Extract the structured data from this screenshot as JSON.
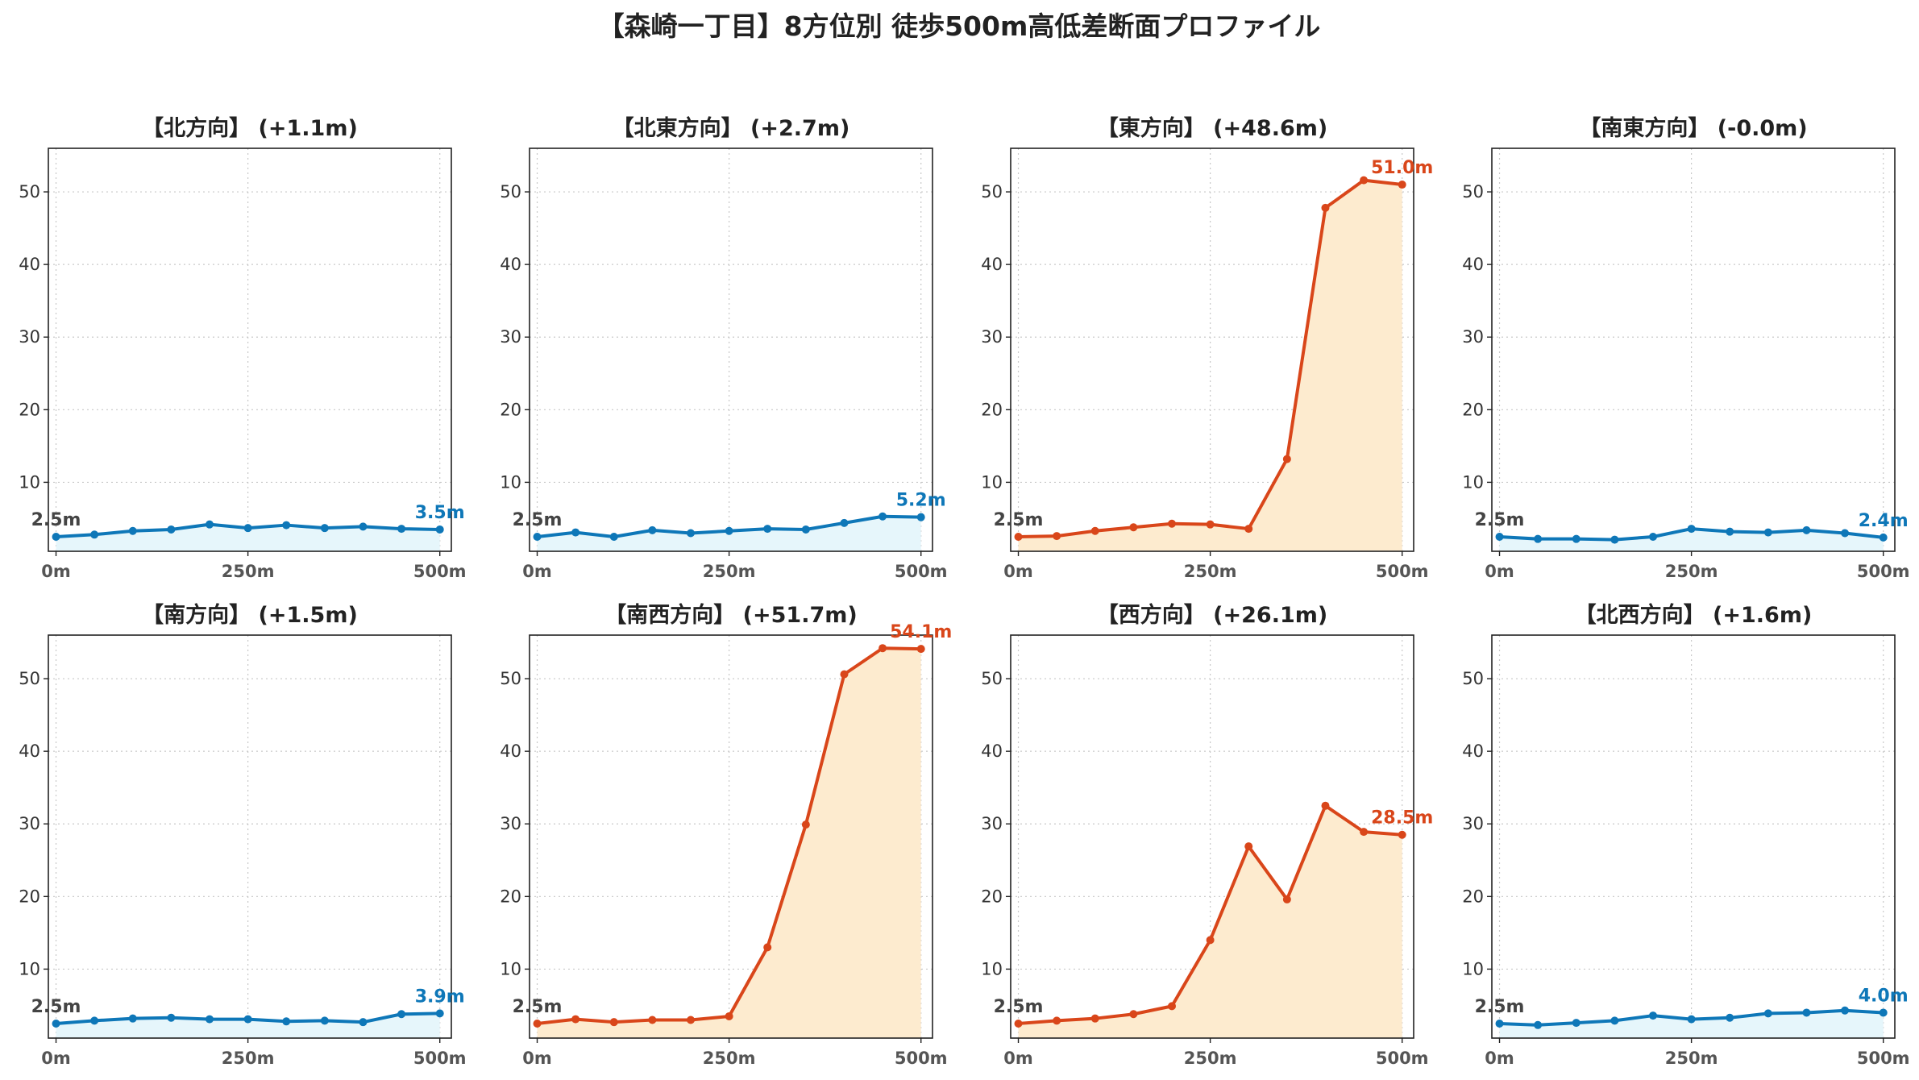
{
  "figure": {
    "title": "【森崎一丁目】8方位別 徒歩500m高低差断面プロファイル"
  },
  "colors": {
    "flat_line": "#0e77b8",
    "flat_fill": "#e6f6fb",
    "steep_line": "#d9461a",
    "steep_fill": "#fdebcf",
    "start_label": "#444444",
    "grid": "#c8c8c8",
    "axes": "#222222"
  },
  "chart_data": [
    {
      "type": "area",
      "title": "【北方向】 (+1.1m)",
      "style": "flat",
      "x": [
        0,
        50,
        100,
        150,
        200,
        250,
        300,
        350,
        400,
        450,
        500
      ],
      "y": [
        2.5,
        2.8,
        3.3,
        3.5,
        4.2,
        3.7,
        4.1,
        3.7,
        3.9,
        3.6,
        3.5
      ],
      "start_label": "2.5m",
      "end_label": "3.5m",
      "xticks": [
        "0m",
        "250m",
        "500m"
      ],
      "yticks": [
        10,
        20,
        30,
        40,
        50
      ],
      "xlim": [
        -10,
        515
      ],
      "ylim": [
        0.5,
        56
      ],
      "grid": true
    },
    {
      "type": "area",
      "title": "【北東方向】 (+2.7m)",
      "style": "flat",
      "x": [
        0,
        50,
        100,
        150,
        200,
        250,
        300,
        350,
        400,
        450,
        500
      ],
      "y": [
        2.5,
        3.1,
        2.5,
        3.4,
        3.0,
        3.3,
        3.6,
        3.5,
        4.4,
        5.3,
        5.2
      ],
      "start_label": "2.5m",
      "end_label": "5.2m",
      "xticks": [
        "0m",
        "250m",
        "500m"
      ],
      "yticks": [
        10,
        20,
        30,
        40,
        50
      ],
      "xlim": [
        -10,
        515
      ],
      "ylim": [
        0.5,
        56
      ],
      "grid": true
    },
    {
      "type": "area",
      "title": "【東方向】 (+48.6m)",
      "style": "steep",
      "x": [
        0,
        50,
        100,
        150,
        200,
        250,
        300,
        350,
        400,
        450,
        500
      ],
      "y": [
        2.5,
        2.6,
        3.3,
        3.8,
        4.3,
        4.2,
        3.6,
        13.2,
        47.8,
        51.6,
        51.0
      ],
      "start_label": "2.5m",
      "end_label": "51.0m",
      "xticks": [
        "0m",
        "250m",
        "500m"
      ],
      "yticks": [
        10,
        20,
        30,
        40,
        50
      ],
      "xlim": [
        -10,
        515
      ],
      "ylim": [
        0.5,
        56
      ],
      "grid": true
    },
    {
      "type": "area",
      "title": "【南東方向】 (-0.0m)",
      "style": "flat",
      "x": [
        0,
        50,
        100,
        150,
        200,
        250,
        300,
        350,
        400,
        450,
        500
      ],
      "y": [
        2.5,
        2.2,
        2.2,
        2.1,
        2.5,
        3.6,
        3.2,
        3.1,
        3.4,
        3.0,
        2.4
      ],
      "start_label": "2.5m",
      "end_label": "2.4m",
      "xticks": [
        "0m",
        "250m",
        "500m"
      ],
      "yticks": [
        10,
        20,
        30,
        40,
        50
      ],
      "xlim": [
        -10,
        515
      ],
      "ylim": [
        0.5,
        56
      ],
      "grid": true
    },
    {
      "type": "area",
      "title": "【南方向】 (+1.5m)",
      "style": "flat",
      "x": [
        0,
        50,
        100,
        150,
        200,
        250,
        300,
        350,
        400,
        450,
        500
      ],
      "y": [
        2.5,
        2.9,
        3.2,
        3.3,
        3.1,
        3.1,
        2.8,
        2.9,
        2.7,
        3.8,
        3.9
      ],
      "start_label": "2.5m",
      "end_label": "3.9m",
      "xticks": [
        "0m",
        "250m",
        "500m"
      ],
      "yticks": [
        10,
        20,
        30,
        40,
        50
      ],
      "xlim": [
        -10,
        515
      ],
      "ylim": [
        0.5,
        56
      ],
      "grid": true
    },
    {
      "type": "area",
      "title": "【南西方向】 (+51.7m)",
      "style": "steep",
      "x": [
        0,
        50,
        100,
        150,
        200,
        250,
        300,
        350,
        400,
        450,
        500
      ],
      "y": [
        2.5,
        3.1,
        2.7,
        3.0,
        3.0,
        3.5,
        13.0,
        29.9,
        50.6,
        54.2,
        54.1
      ],
      "start_label": "2.5m",
      "end_label": "54.1m",
      "xticks": [
        "0m",
        "250m",
        "500m"
      ],
      "yticks": [
        10,
        20,
        30,
        40,
        50
      ],
      "xlim": [
        -10,
        515
      ],
      "ylim": [
        0.5,
        56
      ],
      "grid": true
    },
    {
      "type": "area",
      "title": "【西方向】 (+26.1m)",
      "style": "steep",
      "x": [
        0,
        50,
        100,
        150,
        200,
        250,
        300,
        350,
        400,
        450,
        500
      ],
      "y": [
        2.5,
        2.9,
        3.2,
        3.8,
        4.9,
        14.0,
        26.9,
        19.6,
        32.5,
        28.9,
        28.5
      ],
      "start_label": "2.5m",
      "end_label": "28.5m",
      "xticks": [
        "0m",
        "250m",
        "500m"
      ],
      "yticks": [
        10,
        20,
        30,
        40,
        50
      ],
      "xlim": [
        -10,
        515
      ],
      "ylim": [
        0.5,
        56
      ],
      "grid": true
    },
    {
      "type": "area",
      "title": "【北西方向】 (+1.6m)",
      "style": "flat",
      "x": [
        0,
        50,
        100,
        150,
        200,
        250,
        300,
        350,
        400,
        450,
        500
      ],
      "y": [
        2.5,
        2.3,
        2.6,
        2.9,
        3.6,
        3.1,
        3.3,
        3.9,
        4.0,
        4.3,
        4.0
      ],
      "start_label": "2.5m",
      "end_label": "4.0m",
      "xticks": [
        "0m",
        "250m",
        "500m"
      ],
      "yticks": [
        10,
        20,
        30,
        40,
        50
      ],
      "xlim": [
        -10,
        515
      ],
      "ylim": [
        0.5,
        56
      ],
      "grid": true
    }
  ]
}
